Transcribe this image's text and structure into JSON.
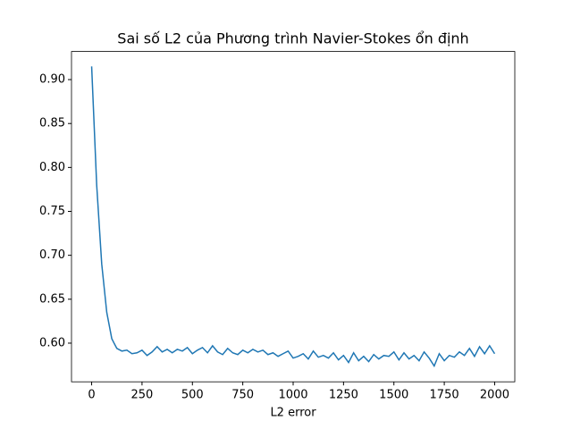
{
  "chart_data": {
    "type": "line",
    "title": "Sai số L2 của Phương trình Navier-Stokes ổn định",
    "x_label": "L2 error",
    "x": [
      0,
      25,
      50,
      75,
      100,
      125,
      150,
      175,
      200,
      225,
      250,
      275,
      300,
      325,
      350,
      375,
      400,
      425,
      450,
      475,
      500,
      525,
      550,
      575,
      600,
      625,
      650,
      675,
      700,
      725,
      750,
      775,
      800,
      825,
      850,
      875,
      900,
      925,
      950,
      975,
      1000,
      1025,
      1050,
      1075,
      1100,
      1125,
      1150,
      1175,
      1200,
      1225,
      1250,
      1275,
      1300,
      1325,
      1350,
      1375,
      1400,
      1425,
      1450,
      1475,
      1500,
      1525,
      1550,
      1575,
      1600,
      1625,
      1650,
      1675,
      1700,
      1725,
      1750,
      1775,
      1800,
      1825,
      1850,
      1875,
      1900,
      1925,
      1950,
      1975,
      2000
    ],
    "series": [
      {
        "color": "#1f77b4",
        "values": [
          0.915,
          0.78,
          0.69,
          0.635,
          0.605,
          0.594,
          0.591,
          0.592,
          0.588,
          0.589,
          0.592,
          0.586,
          0.59,
          0.596,
          0.59,
          0.593,
          0.589,
          0.593,
          0.591,
          0.595,
          0.588,
          0.592,
          0.595,
          0.589,
          0.597,
          0.59,
          0.587,
          0.594,
          0.589,
          0.587,
          0.592,
          0.589,
          0.593,
          0.59,
          0.592,
          0.587,
          0.589,
          0.585,
          0.588,
          0.591,
          0.583,
          0.585,
          0.588,
          0.582,
          0.591,
          0.584,
          0.586,
          0.583,
          0.589,
          0.581,
          0.586,
          0.578,
          0.589,
          0.58,
          0.585,
          0.579,
          0.587,
          0.582,
          0.586,
          0.585,
          0.59,
          0.581,
          0.589,
          0.582,
          0.586,
          0.58,
          0.59,
          0.583,
          0.574,
          0.588,
          0.58,
          0.586,
          0.584,
          0.59,
          0.586,
          0.594,
          0.585,
          0.596,
          0.588,
          0.597,
          0.588
        ]
      }
    ],
    "xlim": [
      -100,
      2100
    ],
    "ylim": [
      0.556,
      0.932
    ],
    "xticks": [
      0,
      250,
      500,
      750,
      1000,
      1250,
      1500,
      1750,
      2000
    ],
    "yticks": [
      {
        "value": 0.6,
        "label": "0.60"
      },
      {
        "value": 0.65,
        "label": "0.65"
      },
      {
        "value": 0.7,
        "label": "0.70"
      },
      {
        "value": 0.75,
        "label": "0.75"
      },
      {
        "value": 0.8,
        "label": "0.80"
      },
      {
        "value": 0.85,
        "label": "0.85"
      },
      {
        "value": 0.9,
        "label": "0.90"
      }
    ]
  }
}
